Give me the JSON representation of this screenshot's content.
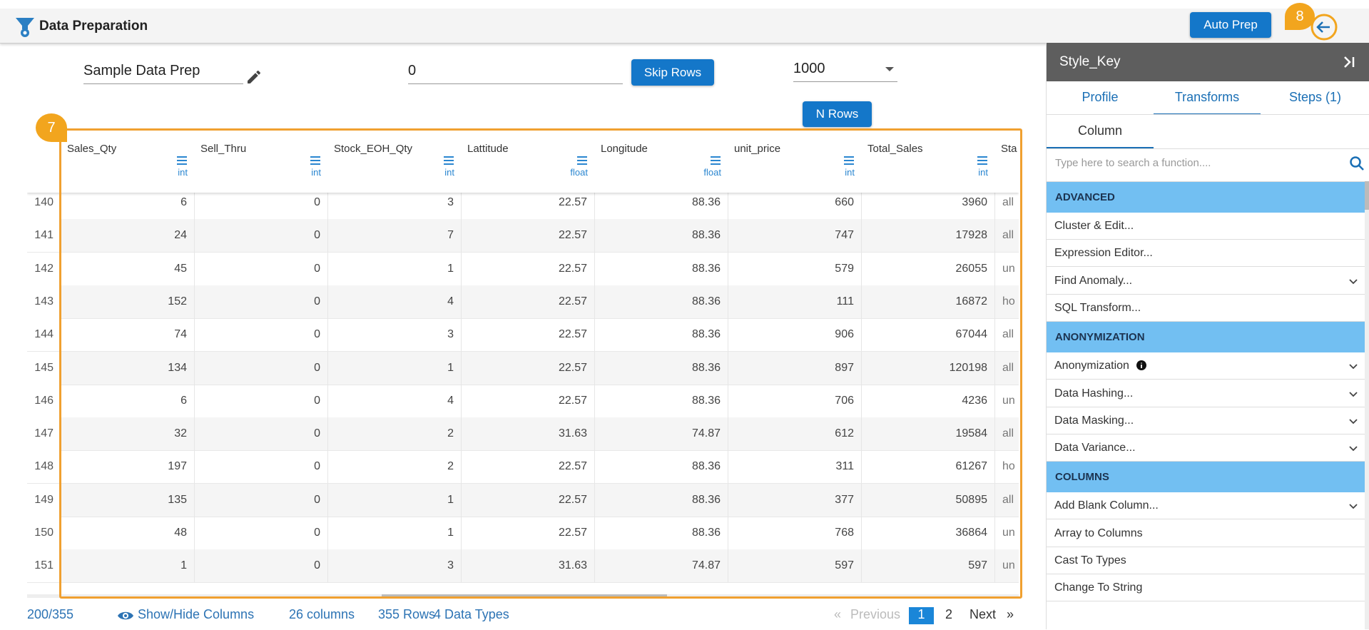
{
  "header": {
    "title": "Data Preparation",
    "auto_prep": "Auto Prep",
    "badge": "8"
  },
  "inputs": {
    "name": "Sample Data Prep",
    "skip_value": "0",
    "skip_button": "Skip Rows",
    "rows_select": "1000",
    "n_rows_button": "N Rows"
  },
  "table": {
    "badge": "7",
    "columns": [
      {
        "name": "Sales_Qty",
        "type": "int"
      },
      {
        "name": "Sell_Thru",
        "type": "int"
      },
      {
        "name": "Stock_EOH_Qty",
        "type": "int"
      },
      {
        "name": "Lattitude",
        "type": "float"
      },
      {
        "name": "Longitude",
        "type": "float"
      },
      {
        "name": "unit_price",
        "type": "int"
      },
      {
        "name": "Total_Sales",
        "type": "int"
      },
      {
        "name": "Sta",
        "type": null
      }
    ],
    "rows": [
      [
        "140",
        "6",
        "0",
        "3",
        "22.57",
        "88.36",
        "660",
        "3960",
        "all"
      ],
      [
        "141",
        "24",
        "0",
        "7",
        "22.57",
        "88.36",
        "747",
        "17928",
        "all"
      ],
      [
        "142",
        "45",
        "0",
        "1",
        "22.57",
        "88.36",
        "579",
        "26055",
        "un"
      ],
      [
        "143",
        "152",
        "0",
        "4",
        "22.57",
        "88.36",
        "111",
        "16872",
        "ho"
      ],
      [
        "144",
        "74",
        "0",
        "3",
        "22.57",
        "88.36",
        "906",
        "67044",
        "all"
      ],
      [
        "145",
        "134",
        "0",
        "1",
        "22.57",
        "88.36",
        "897",
        "120198",
        "all"
      ],
      [
        "146",
        "6",
        "0",
        "4",
        "22.57",
        "88.36",
        "706",
        "4236",
        "un"
      ],
      [
        "147",
        "32",
        "0",
        "2",
        "31.63",
        "74.87",
        "612",
        "19584",
        "all"
      ],
      [
        "148",
        "197",
        "0",
        "2",
        "22.57",
        "88.36",
        "311",
        "61267",
        "ho"
      ],
      [
        "149",
        "135",
        "0",
        "1",
        "22.57",
        "88.36",
        "377",
        "50895",
        "all"
      ],
      [
        "150",
        "48",
        "0",
        "1",
        "22.57",
        "88.36",
        "768",
        "36864",
        "un"
      ],
      [
        "151",
        "1",
        "0",
        "3",
        "31.63",
        "74.87",
        "597",
        "597",
        "un"
      ]
    ]
  },
  "footer": {
    "count": "200/355",
    "show_hide": "Show/Hide Columns",
    "columns": "26 columns",
    "rows": "355 Rows",
    "types": "4 Data Types",
    "previous": "Previous",
    "pages": [
      "1",
      "2"
    ],
    "next": "Next"
  },
  "panel": {
    "title": "Style_Key",
    "tabs": [
      "Profile",
      "Transforms",
      "Steps (1)"
    ],
    "subtab": "Column",
    "search_placeholder": "Type here to search a function....",
    "sections": [
      {
        "title": "ADVANCED",
        "items": [
          {
            "label": "Cluster & Edit...",
            "expandable": false
          },
          {
            "label": "Expression Editor...",
            "expandable": false
          },
          {
            "label": "Find Anomaly...",
            "expandable": true
          },
          {
            "label": "SQL Transform...",
            "expandable": false
          }
        ]
      },
      {
        "title": "ANONYMIZATION",
        "items": [
          {
            "label": "Anonymization",
            "expandable": true,
            "info": true
          },
          {
            "label": "Data Hashing...",
            "expandable": true
          },
          {
            "label": "Data Masking...",
            "expandable": true
          },
          {
            "label": "Data Variance...",
            "expandable": true
          }
        ]
      },
      {
        "title": "COLUMNS",
        "items": [
          {
            "label": "Add Blank Column...",
            "expandable": true
          },
          {
            "label": "Array to Columns",
            "expandable": false
          },
          {
            "label": "Cast To Types",
            "expandable": false
          },
          {
            "label": "Change To String",
            "expandable": false
          }
        ]
      }
    ]
  }
}
